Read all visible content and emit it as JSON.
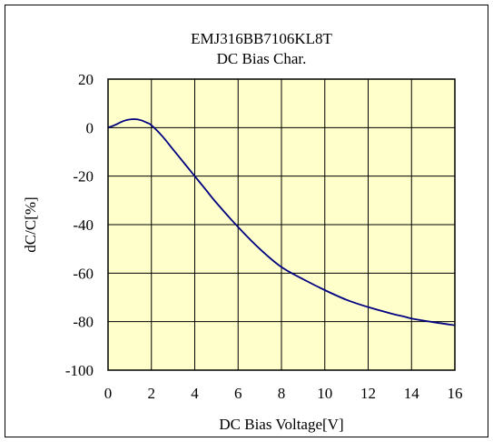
{
  "chart_data": {
    "type": "line",
    "title": "EMJ316BB7106KL8T",
    "subtitle": "DC Bias Char.",
    "xlabel": "DC Bias Voltage[V]",
    "ylabel": "dC/C[%]",
    "xlim": [
      0,
      16
    ],
    "ylim": [
      -100,
      20
    ],
    "xticks": [
      0,
      2,
      4,
      6,
      8,
      10,
      12,
      14,
      16
    ],
    "yticks": [
      20,
      0,
      -20,
      -40,
      -60,
      -80,
      -100
    ],
    "xtick_labels": [
      "0",
      "2",
      "4",
      "6",
      "8",
      "10",
      "12",
      "14",
      "16"
    ],
    "ytick_labels": [
      "20",
      "0",
      "-20",
      "-40",
      "-60",
      "-80",
      "-100"
    ],
    "grid": true,
    "legend": "none",
    "plot_background": "#ffffcc",
    "line_color": "#000080",
    "series": [
      {
        "x": [
          0,
          0.3,
          0.6,
          0.9,
          1.2,
          1.5,
          1.8,
          2.0,
          2.5,
          3.0,
          3.5,
          4.0,
          4.5,
          5.0,
          6.0,
          7.0,
          8.0,
          9.0,
          10.0,
          11.0,
          12.0,
          13.0,
          13.7,
          14.0,
          15.0,
          16.0
        ],
        "y": [
          0,
          1,
          2.3,
          3.2,
          3.5,
          3.1,
          2.0,
          1.0,
          -3.5,
          -9.0,
          -14.5,
          -20.0,
          -25.5,
          -31.0,
          -41.0,
          -50.0,
          -57.5,
          -62.5,
          -67.0,
          -71.0,
          -74.0,
          -76.5,
          -78.0,
          -78.7,
          -80.2,
          -81.5
        ]
      }
    ]
  }
}
